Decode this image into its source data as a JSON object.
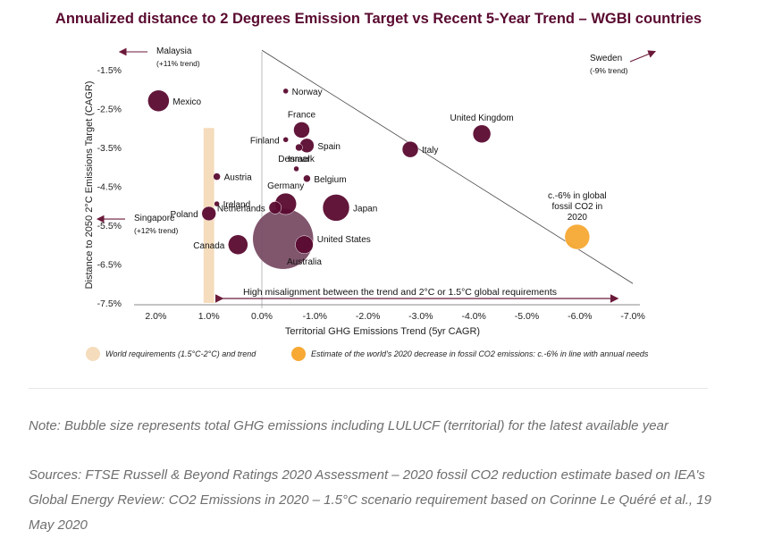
{
  "title": "Annualized distance to 2 Degrees Emission Target vs Recent 5-Year Trend – WGBI countries",
  "chart_data": {
    "type": "scatter",
    "title": "Annualized distance to 2 Degrees Emission Target vs Recent 5-Year Trend – WGBI countries",
    "xlabel": "Territorial GHG Emissions Trend (5yr CAGR)",
    "ylabel": "Distance to 2050 2°C Emissions Target (CAGR)",
    "x_reversed": true,
    "xlim": [
      2.5,
      -7.3
    ],
    "ylim": [
      -7.5,
      -1.0
    ],
    "x_ticks": [
      2,
      1,
      0,
      -1,
      -2,
      -3,
      -4,
      -5,
      -6,
      -7
    ],
    "x_tick_labels": [
      "2.0%",
      "1.0%",
      "0.0%",
      "-1.0%",
      "-2.0%",
      "-3.0%",
      "-4.0%",
      "-5.0%",
      "-6.0%",
      "-7.0%"
    ],
    "y_ticks": [
      -1.5,
      -2.5,
      -3.5,
      -4.5,
      -5.5,
      -6.5,
      -7.5
    ],
    "y_tick_labels": [
      "-1.5%",
      "-2.5%",
      "-3.5%",
      "-4.5%",
      "-5.5%",
      "-6.5%",
      "-7.5%"
    ],
    "grid": false,
    "band": {
      "x_from": 1.1,
      "x_to": 0.9,
      "y_from": -3.0,
      "y_to": -7.5,
      "color": "#f5dcbc"
    },
    "diagonal": {
      "x1": 0.0,
      "y1": -1.0,
      "x2": -7.0,
      "y2": -7.0
    },
    "points": [
      {
        "name": "Mexico",
        "x": 1.95,
        "y": -2.3,
        "r": 12,
        "label_side": "right"
      },
      {
        "name": "Norway",
        "x": -0.45,
        "y": -2.05,
        "r": 3,
        "label_side": "right"
      },
      {
        "name": "France",
        "x": -0.75,
        "y": -3.05,
        "r": 9,
        "label_side": "top"
      },
      {
        "name": "Finland",
        "x": -0.45,
        "y": -3.3,
        "r": 3,
        "label_side": "left"
      },
      {
        "name": "Spain",
        "x": -0.85,
        "y": -3.45,
        "r": 8,
        "label_side": "right"
      },
      {
        "name": "Israel",
        "x": -0.7,
        "y": -3.5,
        "r": 4,
        "label_side": "bottom"
      },
      {
        "name": "Denmark",
        "x": -0.65,
        "y": -4.05,
        "r": 3,
        "label_side": "top"
      },
      {
        "name": "Belgium",
        "x": -0.85,
        "y": -4.3,
        "r": 4,
        "label_side": "right"
      },
      {
        "name": "Austria",
        "x": 0.85,
        "y": -4.25,
        "r": 4,
        "label_side": "right"
      },
      {
        "name": "Ireland",
        "x": 0.85,
        "y": -4.95,
        "r": 3,
        "label_side": "right"
      },
      {
        "name": "Poland",
        "x": 1.0,
        "y": -5.2,
        "r": 8,
        "label_side": "left"
      },
      {
        "name": "Germany",
        "x": -0.45,
        "y": -4.95,
        "r": 12,
        "label_side": "top"
      },
      {
        "name": "Netherlands",
        "x": -0.25,
        "y": -5.05,
        "r": 7,
        "label_side": "left"
      },
      {
        "name": "Japan",
        "x": -1.4,
        "y": -5.05,
        "r": 15,
        "label_side": "right"
      },
      {
        "name": "United States",
        "x": -0.4,
        "y": -5.85,
        "r": 34,
        "color": "#7a4d66",
        "label_side": "right"
      },
      {
        "name": "Australia",
        "x": -0.8,
        "y": -6.0,
        "r": 10,
        "label_side": "bottom"
      },
      {
        "name": "Canada",
        "x": 0.45,
        "y": -6.0,
        "r": 11,
        "label_side": "left"
      },
      {
        "name": "Italy",
        "x": -2.8,
        "y": -3.55,
        "r": 9,
        "label_side": "right"
      },
      {
        "name": "United Kingdom",
        "x": -4.15,
        "y": -3.15,
        "r": 10,
        "label_side": "top"
      },
      {
        "name": "c.-6% in global fossil CO2 in 2020",
        "x": -5.95,
        "y": -5.8,
        "r": 14,
        "color": "#f7a933",
        "label_side": "top"
      }
    ],
    "offscale": [
      {
        "name": "Malaysia",
        "note": "(+11% trend)",
        "direction": "left",
        "y": -1.5
      },
      {
        "name": "Sweden",
        "note": "(-9% trend)",
        "direction": "right",
        "y": -1.5
      },
      {
        "name": "Singapore",
        "note": "(+12% trend)",
        "direction": "left",
        "y": -5.8
      }
    ],
    "misalignment_text": "High misalignment between the trend and 2°C or 1.5°C global requirements",
    "colors": {
      "bubble": "#5a0a30",
      "axis": "#888888",
      "arrow": "#6b1a3a"
    }
  },
  "legend": [
    {
      "label": "World requirements (1.5°C-2°C) and trend",
      "color": "#f5dcbc"
    },
    {
      "label": "Estimate of the world's 2020 decrease in fossil CO2 emissions: c.-6% in line with annual needs",
      "color": "#f7a933"
    }
  ],
  "note": "Note: Bubble size represents total GHG emissions including LULUCF (territorial) for the latest available year",
  "sources": "Sources: FTSE Russell & Beyond Ratings 2020 Assessment – 2020 fossil CO2 reduction estimate based on IEA's Global Energy Review: CO2 Emissions in 2020 – 1.5°C scenario requirement based on Corinne Le Quéré et al., 19 May 2020"
}
